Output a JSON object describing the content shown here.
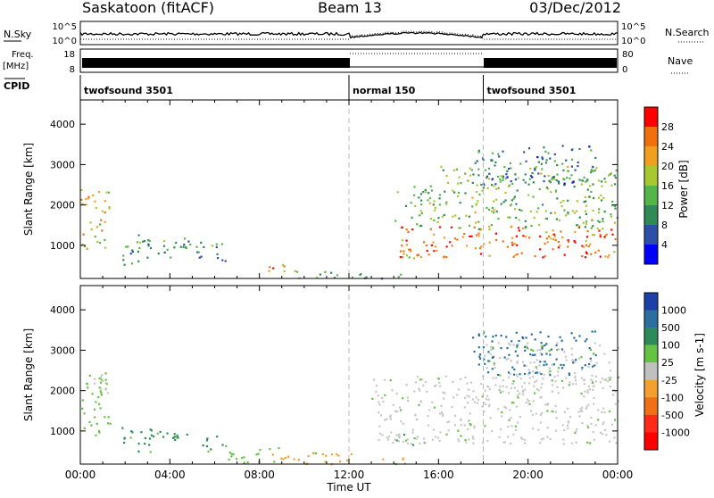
{
  "header": {
    "station": "Saskatoon (fitACF)",
    "beam": "Beam 13",
    "date": "03/Dec/2012"
  },
  "top_panels": {
    "nsky_label": "N.Sky",
    "nsky_ticks": [
      "10^5",
      "10^0"
    ],
    "nsearch_ticks": [
      "10^5",
      "10^0"
    ],
    "nsearch_label": "N.Search",
    "freq_label_1": "Freq.",
    "freq_label_2": "[MHz]",
    "freq_ticks": [
      "18",
      "8"
    ],
    "nave_ticks": [
      "80",
      "0"
    ],
    "nave_label": "Nave",
    "cpid_label": "CPID",
    "cpid_segments": [
      {
        "label": "twofsound 3501",
        "start_hour": 0,
        "end_hour": 12
      },
      {
        "label": "normal 150",
        "start_hour": 12,
        "end_hour": 18
      },
      {
        "label": "twofsound 3501",
        "start_hour": 18,
        "end_hour": 24
      }
    ]
  },
  "chart_data": [
    {
      "type": "heatmap",
      "title": "Power",
      "xlabel": "Time UT",
      "ylabel": "Slant Range [km]",
      "x_ticks": [
        "00:00",
        "04:00",
        "08:00",
        "12:00",
        "16:00",
        "20:00",
        "00:00"
      ],
      "x_range_hours": [
        0,
        24
      ],
      "y_ticks": [
        1000,
        2000,
        3000,
        4000
      ],
      "ylim": [
        180,
        4600
      ],
      "colorbar_label": "Power [dB]",
      "colorbar_ticks": [
        "4",
        "8",
        "12",
        "16",
        "20",
        "24",
        "28"
      ],
      "colorbar_colors": [
        "#0000ff",
        "#2d4fa8",
        "#2f8a55",
        "#55b44a",
        "#a8c832",
        "#f0a020",
        "#f07010",
        "#ff0000"
      ],
      "regions": [
        {
          "t0": 0.0,
          "t1": 1.3,
          "r0": 900,
          "r1": 2400,
          "level": 0.65
        },
        {
          "t0": 1.7,
          "t1": 3.2,
          "r0": 500,
          "r1": 1300,
          "level": 0.35
        },
        {
          "t0": 3.0,
          "t1": 5.3,
          "r0": 700,
          "r1": 1200,
          "level": 0.35
        },
        {
          "t0": 5.3,
          "t1": 6.5,
          "r0": 600,
          "r1": 1100,
          "level": 0.3
        },
        {
          "t0": 8.3,
          "t1": 9.3,
          "r0": 300,
          "r1": 600,
          "level": 0.8
        },
        {
          "t0": 9.0,
          "t1": 12.5,
          "r0": 200,
          "r1": 400,
          "level": 0.45
        },
        {
          "t0": 12.5,
          "t1": 14.5,
          "r0": 200,
          "r1": 350,
          "level": 0.3
        },
        {
          "t0": 14.0,
          "t1": 15.0,
          "r0": 650,
          "r1": 950,
          "level": 0.6
        },
        {
          "t0": 14.2,
          "t1": 24.0,
          "r0": 700,
          "r1": 1500,
          "level": 0.85
        },
        {
          "t0": 14.0,
          "t1": 16.0,
          "r0": 1500,
          "r1": 2500,
          "level": 0.45
        },
        {
          "t0": 16.0,
          "t1": 24.0,
          "r0": 1400,
          "r1": 3000,
          "level": 0.45
        },
        {
          "t0": 17.5,
          "t1": 23.0,
          "r0": 2500,
          "r1": 3500,
          "level": 0.25
        }
      ]
    },
    {
      "type": "heatmap",
      "title": "Velocity",
      "xlabel": "Time UT",
      "ylabel": "Slant Range [km]",
      "x_ticks": [
        "00:00",
        "04:00",
        "08:00",
        "12:00",
        "16:00",
        "20:00",
        "00:00"
      ],
      "x_range_hours": [
        0,
        24
      ],
      "y_ticks": [
        1000,
        2000,
        3000,
        4000
      ],
      "ylim": [
        180,
        4600
      ],
      "colorbar_label": "Velocity [m s-1]",
      "colorbar_ticks": [
        "1000",
        "500",
        "100",
        "25",
        "-25",
        "-100",
        "-500",
        "-1000"
      ],
      "colorbar_colors": [
        "#1c3fa8",
        "#2a6fa0",
        "#2e8a5a",
        "#66c244",
        "#c0c0c0",
        "#f4a030",
        "#f07018",
        "#ff2a1a",
        "#ff0000"
      ],
      "regions": [
        {
          "t0": 0.0,
          "t1": 1.3,
          "r0": 900,
          "r1": 2400,
          "vel": "green"
        },
        {
          "t0": 0.2,
          "t1": 1.2,
          "r0": 1900,
          "r1": 2500,
          "vel": "grey"
        },
        {
          "t0": 1.7,
          "t1": 3.2,
          "r0": 500,
          "r1": 1100,
          "vel": "teal"
        },
        {
          "t0": 3.0,
          "t1": 5.3,
          "r0": 700,
          "r1": 1100,
          "vel": "teal"
        },
        {
          "t0": 5.3,
          "t1": 6.5,
          "r0": 500,
          "r1": 900,
          "vel": "teal"
        },
        {
          "t0": 6.5,
          "t1": 9.0,
          "r0": 200,
          "r1": 600,
          "vel": "green"
        },
        {
          "t0": 8.3,
          "t1": 12.5,
          "r0": 200,
          "r1": 500,
          "vel": "orange"
        },
        {
          "t0": 12.5,
          "t1": 14.5,
          "r0": 200,
          "r1": 350,
          "vel": "orange"
        },
        {
          "t0": 14.0,
          "t1": 15.0,
          "r0": 650,
          "r1": 950,
          "vel": "teal"
        },
        {
          "t0": 13.0,
          "t1": 24.0,
          "r0": 700,
          "r1": 2400,
          "vel": "grey"
        },
        {
          "t0": 18.0,
          "t1": 24.0,
          "r0": 2000,
          "r1": 3200,
          "vel": "grey"
        },
        {
          "t0": 17.5,
          "t1": 23.0,
          "r0": 2400,
          "r1": 3500,
          "vel": "blue"
        }
      ]
    }
  ]
}
